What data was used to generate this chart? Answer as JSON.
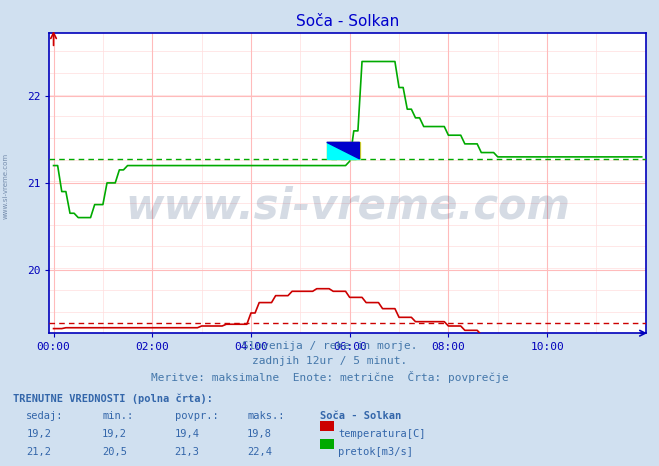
{
  "title": "Soča - Solkan",
  "bg_color": "#d0e0f0",
  "plot_bg_color": "#ffffff",
  "grid_color_major": "#ffbbbb",
  "grid_color_minor": "#ffdddd",
  "x_tick_labels": [
    "00:00",
    "02:00",
    "04:00",
    "06:00",
    "08:00",
    "10:00"
  ],
  "x_tick_positions": [
    0,
    24,
    48,
    72,
    96,
    120
  ],
  "ylim_min": 19.267,
  "ylim_max": 22.733,
  "y_ticks": [
    20,
    21,
    22
  ],
  "temp_color": "#cc0000",
  "flow_color": "#00aa00",
  "avg_temp": 19.38,
  "avg_flow": 21.28,
  "caption_line1": "Slovenija / reke in morje.",
  "caption_line2": "zadnjih 12ur / 5 minut.",
  "caption_line3": "Meritve: maksimalne  Enote: metrične  Črta: povprečje",
  "table_header": "TRENUTNE VREDNOSTI (polna črta):",
  "col_headers": [
    "sedaj:",
    "min.:",
    "povpr.:",
    "maks.:",
    "Soča - Solkan"
  ],
  "row1": [
    "19,2",
    "19,2",
    "19,4",
    "19,8"
  ],
  "row2": [
    "21,2",
    "20,5",
    "21,3",
    "22,4"
  ],
  "label1": "temperatura[C]",
  "label2": "pretok[m3/s]",
  "axis_color": "#0000bb",
  "text_color": "#4477aa",
  "title_color": "#0000cc",
  "table_text_color": "#3366aa",
  "watermark": "www.si-vreme.com",
  "watermark_color": "#1a3a6a",
  "side_label": "www.si-vreme.com"
}
